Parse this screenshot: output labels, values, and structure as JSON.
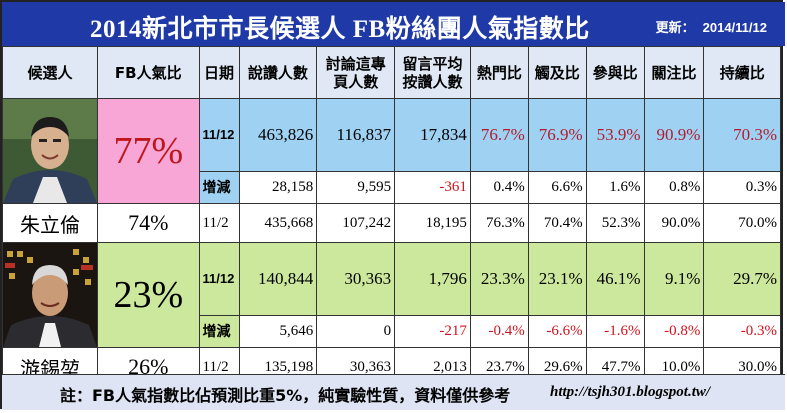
{
  "title": "2014新北市市長候選人 FB粉絲團人氣指數比",
  "updated_label": "更新：",
  "updated_date": "2014/11/12",
  "headers": {
    "candidate": "候選人",
    "fb_ratio": "FB人氣比",
    "date": "日期",
    "likes": "說讚人數",
    "talking": [
      "討論這專",
      "頁人數"
    ],
    "avg_comments": [
      "留言平均",
      "按讚人數"
    ],
    "hot": "熱門比",
    "reach": "觸及比",
    "engage": "參與比",
    "attention": "關注比",
    "persist": "持續比"
  },
  "candidates": [
    {
      "name": "朱立倫",
      "photo_icon": "candidate-portrait-zhu",
      "current": {
        "fb_ratio": "77%",
        "date": "11/12",
        "likes": "463,826",
        "talking": "116,837",
        "avg_comments": "17,834",
        "hot": "76.7%",
        "reach": "76.9%",
        "engage": "53.9%",
        "attention": "90.9%",
        "persist": "70.3%"
      },
      "delta": {
        "label": "增減",
        "likes": "28,158",
        "talking": "9,595",
        "avg_comments": "-361",
        "hot": "0.4%",
        "reach": "6.6%",
        "engage": "1.6%",
        "attention": "0.8%",
        "persist": "0.3%"
      },
      "previous": {
        "fb_ratio": "74%",
        "date": "11/2",
        "likes": "435,668",
        "talking": "107,242",
        "avg_comments": "18,195",
        "hot": "76.3%",
        "reach": "70.4%",
        "engage": "52.3%",
        "attention": "90.0%",
        "persist": "70.0%"
      }
    },
    {
      "name": "游錫堃",
      "photo_icon": "candidate-portrait-you",
      "current": {
        "fb_ratio": "23%",
        "date": "11/12",
        "likes": "140,844",
        "talking": "30,363",
        "avg_comments": "1,796",
        "hot": "23.3%",
        "reach": "23.1%",
        "engage": "46.1%",
        "attention": "9.1%",
        "persist": "29.7%"
      },
      "delta": {
        "label": "增減",
        "likes": "5,646",
        "talking": "0",
        "avg_comments": "-217",
        "hot": "-0.4%",
        "reach": "-6.6%",
        "engage": "-1.6%",
        "attention": "-0.8%",
        "persist": "-0.3%"
      },
      "previous": {
        "fb_ratio": "26%",
        "date": "11/2",
        "likes": "135,198",
        "talking": "30,363",
        "avg_comments": "2,013",
        "hot": "23.7%",
        "reach": "29.6%",
        "engage": "47.7%",
        "attention": "10.0%",
        "persist": "30.0%"
      }
    }
  ],
  "footer": {
    "note": "註：FB人氣指數比佔預測比重5%，純實驗性質，資料僅供參考",
    "url": "http://tsjh301.blogspot.tw/"
  },
  "colors": {
    "title_bg": "#1f3aa7",
    "header_bg": "#dfe8f4",
    "row_blue": "#9fd1f3",
    "row_green": "#cce89c",
    "highlight_pink": "#f7a6d6",
    "negative_red": "#d0131d"
  }
}
